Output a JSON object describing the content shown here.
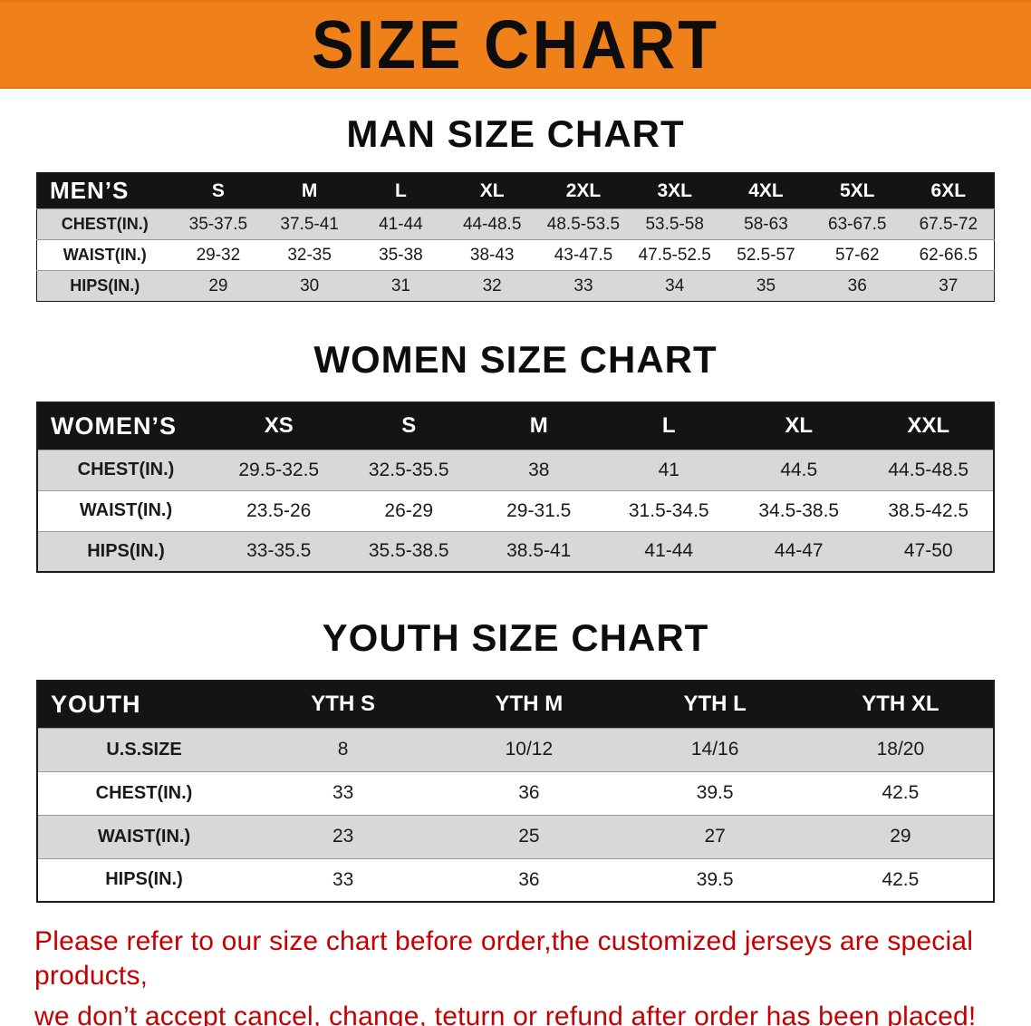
{
  "banner": {
    "title": "SIZE CHART"
  },
  "headings": {
    "men": "MAN SIZE CHART",
    "women": "WOMEN SIZE CHART",
    "youth": "YOUTH SIZE CHART"
  },
  "tables": {
    "men": {
      "header": [
        "MEN’S",
        "S",
        "M",
        "L",
        "XL",
        "2XL",
        "3XL",
        "4XL",
        "5XL",
        "6XL"
      ],
      "rows": [
        [
          "CHEST(IN.)",
          "35-37.5",
          "37.5-41",
          "41-44",
          "44-48.5",
          "48.5-53.5",
          "53.5-58",
          "58-63",
          "63-67.5",
          "67.5-72"
        ],
        [
          "WAIST(IN.)",
          "29-32",
          "32-35",
          "35-38",
          "38-43",
          "43-47.5",
          "47.5-52.5",
          "52.5-57",
          "57-62",
          "62-66.5"
        ],
        [
          "HIPS(IN.)",
          "29",
          "30",
          "31",
          "32",
          "33",
          "34",
          "35",
          "36",
          "37"
        ]
      ]
    },
    "women": {
      "header": [
        "WOMEN’S",
        "XS",
        "S",
        "M",
        "L",
        "XL",
        "XXL"
      ],
      "rows": [
        [
          "CHEST(IN.)",
          "29.5-32.5",
          "32.5-35.5",
          "38",
          "41",
          "44.5",
          "44.5-48.5"
        ],
        [
          "WAIST(IN.)",
          "23.5-26",
          "26-29",
          "29-31.5",
          "31.5-34.5",
          "34.5-38.5",
          "38.5-42.5"
        ],
        [
          "HIPS(IN.)",
          "33-35.5",
          "35.5-38.5",
          "38.5-41",
          "41-44",
          "44-47",
          "47-50"
        ]
      ]
    },
    "youth": {
      "header": [
        "YOUTH",
        "YTH S",
        "YTH M",
        "YTH L",
        "YTH XL"
      ],
      "rows": [
        [
          "U.S.SIZE",
          "8",
          "10/12",
          "14/16",
          "18/20"
        ],
        [
          "CHEST(IN.)",
          "33",
          "36",
          "39.5",
          "42.5"
        ],
        [
          "WAIST(IN.)",
          "23",
          "25",
          "27",
          "29"
        ],
        [
          "HIPS(IN.)",
          "33",
          "36",
          "39.5",
          "42.5"
        ]
      ]
    }
  },
  "footer": {
    "line1": "Please refer to our size chart before order,the customized jerseys are special products,",
    "line2": "we don’t accept cancel, change, teturn or refund after order has been placed!"
  },
  "colors": {
    "banner_orange": "#f08019",
    "header_black": "#141414",
    "row_gray": "#d8d8d8",
    "footer_red": "#c40000"
  }
}
